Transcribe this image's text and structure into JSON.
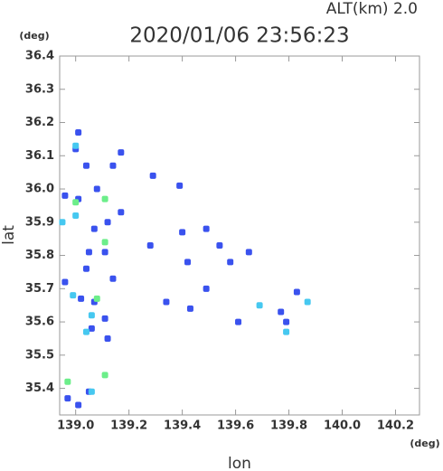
{
  "chart_data": {
    "type": "scatter",
    "title": "2020/01/06 23:56:23",
    "subtitle": "ALT(km) 2.0",
    "x_label": "lon",
    "y_label": "lat",
    "x_unit": "(deg)",
    "y_unit": "(deg)",
    "xlim": [
      138.94,
      140.29
    ],
    "ylim": [
      35.32,
      36.4
    ],
    "xticks": [
      {
        "value": 139,
        "label": "139.0"
      },
      139.2,
      139.4,
      139.6,
      139.8,
      {
        "value": 140,
        "label": "140.0"
      },
      140.2
    ],
    "yticks": [
      35.4,
      35.5,
      35.6,
      35.7,
      35.8,
      35.9,
      {
        "value": 36,
        "label": "36.0"
      },
      36.1,
      36.2,
      36.3,
      36.4
    ],
    "series": [
      {
        "color": "#3a52ee",
        "x": [
          139.01,
          139.0,
          139.04,
          139.17,
          139.14,
          139.29,
          139.39,
          138.96,
          139.01,
          139.08,
          139.17,
          139.12,
          139.07,
          139.05,
          139.11,
          139.04,
          139.14,
          139.28,
          139.4,
          139.49,
          139.54,
          139.58,
          139.65,
          139.42,
          139.49,
          139.43,
          139.34,
          139.61,
          139.83,
          139.77,
          139.79,
          139.06,
          139.11,
          139.12,
          138.96,
          139.02,
          139.07,
          138.97,
          139.05,
          139.01
        ],
        "values": [
          36.17,
          36.12,
          36.07,
          36.11,
          36.07,
          36.04,
          36.01,
          35.98,
          35.97,
          36.0,
          35.93,
          35.9,
          35.88,
          35.81,
          35.81,
          35.76,
          35.73,
          35.83,
          35.87,
          35.88,
          35.83,
          35.78,
          35.81,
          35.78,
          35.7,
          35.64,
          35.66,
          35.6,
          35.69,
          35.63,
          35.6,
          35.58,
          35.61,
          35.55,
          35.72,
          35.67,
          35.66,
          35.37,
          35.39,
          35.35
        ]
      },
      {
        "color": "#46c8f0",
        "x": [
          139.0,
          139.0,
          138.95,
          139.06,
          139.04,
          139.69,
          139.87,
          139.79,
          139.06,
          138.99
        ],
        "values": [
          36.13,
          35.92,
          35.9,
          35.62,
          35.57,
          35.65,
          35.66,
          35.57,
          35.39,
          35.68
        ]
      },
      {
        "color": "#6cee8a",
        "x": [
          139.11,
          139.0,
          139.11,
          138.97,
          139.11,
          139.08
        ],
        "values": [
          35.97,
          35.96,
          35.84,
          35.42,
          35.44,
          35.67
        ]
      }
    ]
  }
}
